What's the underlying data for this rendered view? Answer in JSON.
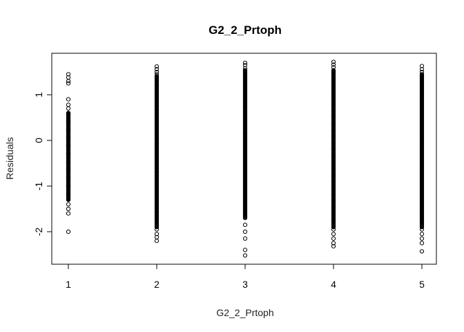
{
  "chart_data": {
    "type": "scatter",
    "title": "G2_2_Prtoph",
    "xlabel": "G2_2_Prtoph",
    "ylabel": "Residuals",
    "xlim": [
      1,
      5
    ],
    "ylim": [
      -2.6,
      1.8
    ],
    "x_ticks": [
      "1",
      "2",
      "3",
      "4",
      "5"
    ],
    "y_ticks": [
      "-2",
      "-1",
      "0",
      "1"
    ],
    "grid": false,
    "series": [
      {
        "x": 1,
        "points": [
          1.45,
          1.38,
          1.3,
          1.25,
          0.9,
          0.78,
          0.7,
          0.6,
          0.55,
          0.45,
          0.35,
          0.3,
          0.2,
          0.12,
          0.05,
          0.0,
          -0.05,
          -0.12,
          -0.2,
          -0.3,
          -0.4,
          -0.5,
          -0.6,
          -0.7,
          -0.8,
          -0.9,
          -1.0,
          -1.1,
          -1.2,
          -1.3,
          -1.4,
          -1.5,
          -1.6,
          -2.0
        ],
        "dense_range": [
          -1.3,
          0.6
        ]
      },
      {
        "x": 2,
        "points": [
          1.62,
          1.56,
          1.5,
          1.45,
          -1.95,
          -2.05,
          -2.12,
          -2.2
        ],
        "dense_range": [
          -1.9,
          1.42
        ]
      },
      {
        "x": 3,
        "points": [
          1.7,
          1.65,
          1.58,
          -1.7,
          -1.85,
          -2.0,
          -2.15,
          -2.4,
          -2.52
        ],
        "dense_range": [
          -1.68,
          1.55
        ]
      },
      {
        "x": 4,
        "points": [
          1.72,
          1.66,
          1.6,
          -1.95,
          -2.05,
          -2.15,
          -2.25,
          -2.32
        ],
        "dense_range": [
          -1.9,
          1.55
        ]
      },
      {
        "x": 5,
        "points": [
          1.63,
          1.56,
          1.5,
          -1.95,
          -2.05,
          -2.15,
          -2.25,
          -2.43
        ],
        "dense_range": [
          -1.9,
          1.45
        ]
      }
    ]
  }
}
